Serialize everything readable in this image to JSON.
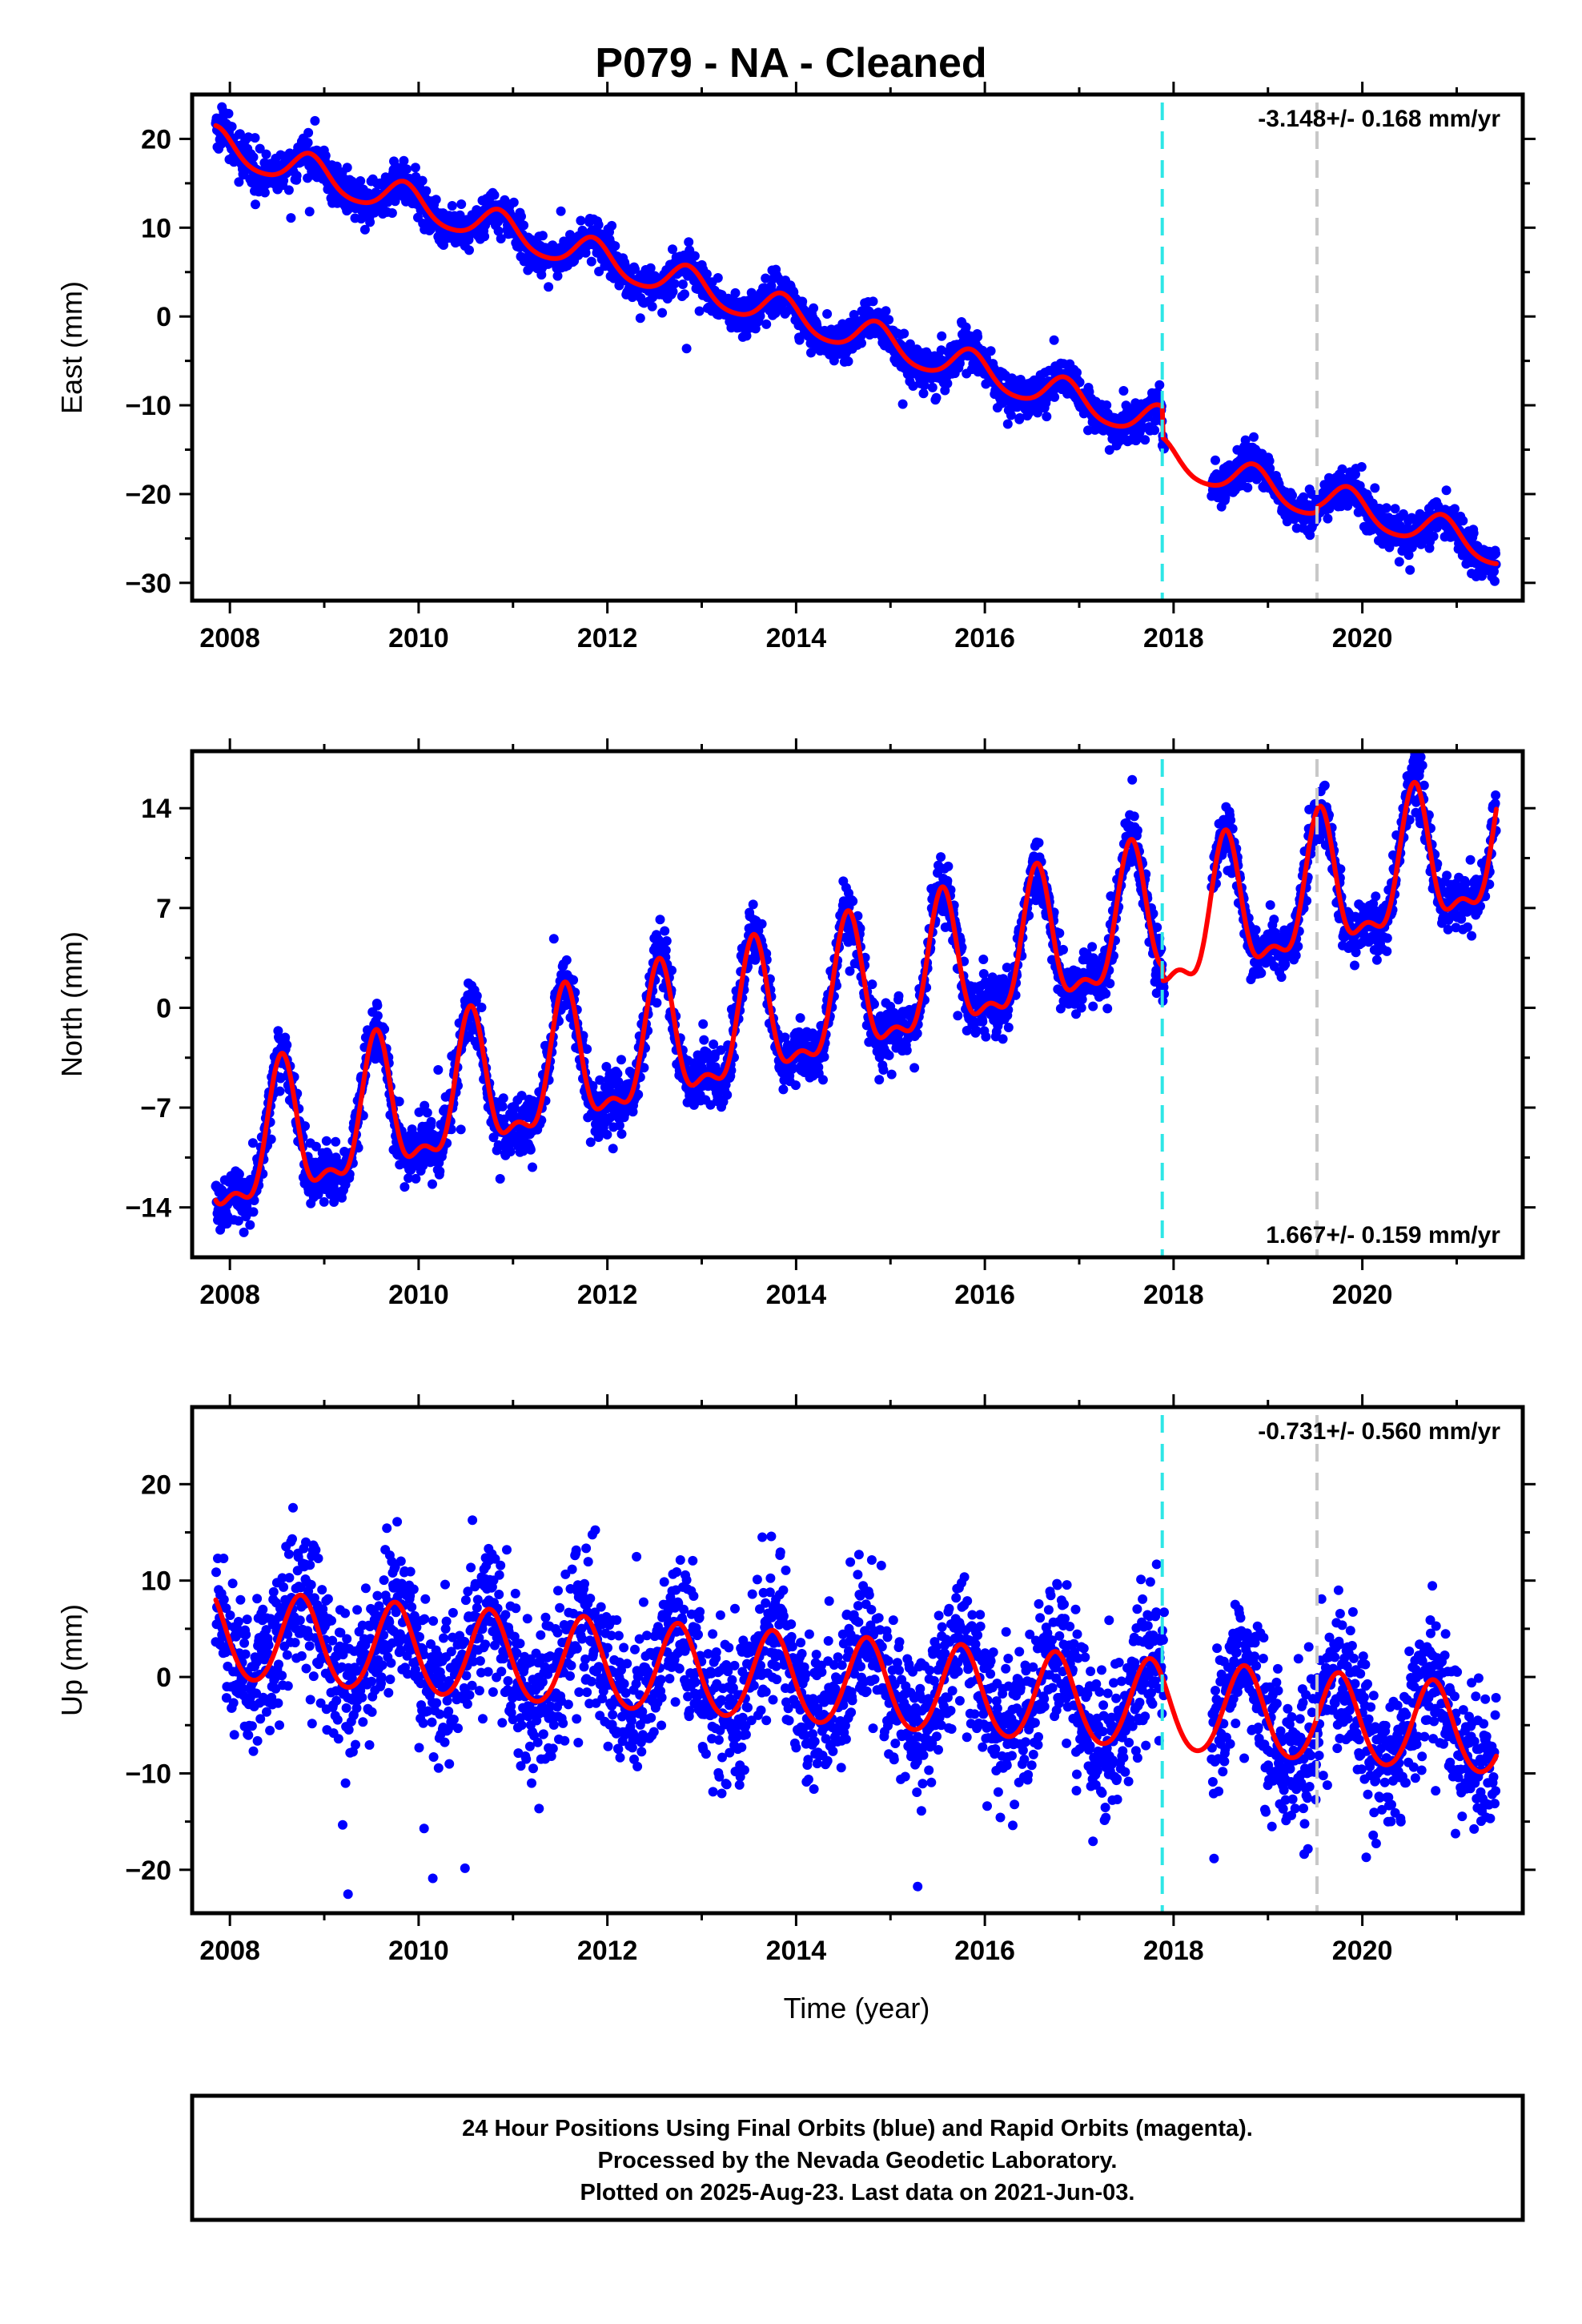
{
  "title": "P079  - NA - Cleaned",
  "colors": {
    "data": "#0000ff",
    "model": "#ff0000",
    "offset_primary": "#2ee6e6",
    "offset_secondary": "#c8c8c8",
    "frame": "#000000"
  },
  "chart_data": [
    {
      "type": "scatter",
      "component": "East",
      "ylabel": "East (mm)",
      "xlabel": "",
      "xlim": [
        2007.6,
        2021.7
      ],
      "ylim": [
        -32,
        25
      ],
      "xticks": [
        2008,
        2010,
        2012,
        2014,
        2016,
        2018,
        2020
      ],
      "yticks": [
        -30,
        -20,
        -10,
        0,
        10,
        20
      ],
      "rate_label": "-3.148+/- 0.168 mm/yr",
      "rate_label_position": "top-right",
      "velocity_mm_per_yr": -3.148,
      "offset_lines": [
        {
          "x": 2017.88,
          "color": "#2ee6e6"
        },
        {
          "x": 2019.52,
          "color": "#c8c8c8"
        }
      ],
      "model": {
        "start": 2007.85,
        "end": 2021.42,
        "value_at_start": 21.5,
        "annual_amplitude": 1.9,
        "annual_phase_peak": 0.85,
        "semiannual_amplitude": 0.3,
        "steps": [
          {
            "x": 2017.88,
            "delta": -3.5
          },
          {
            "x": 2019.52,
            "delta": 0.6
          }
        ]
      },
      "scatter_noise_mm": 1.1,
      "data_gap": [
        2017.9,
        2018.4
      ]
    },
    {
      "type": "scatter",
      "component": "North",
      "ylabel": "North (mm)",
      "xlabel": "",
      "xlim": [
        2007.6,
        2021.7
      ],
      "ylim": [
        -17.5,
        18
      ],
      "xticks": [
        2008,
        2010,
        2012,
        2014,
        2016,
        2018,
        2020
      ],
      "yticks": [
        -14,
        -7,
        0,
        7,
        14
      ],
      "rate_label": "1.667+/- 0.159 mm/yr",
      "rate_label_position": "bottom-right",
      "velocity_mm_per_yr": 1.667,
      "offset_lines": [
        {
          "x": 2017.88,
          "color": "#2ee6e6"
        },
        {
          "x": 2019.52,
          "color": "#c8c8c8"
        }
      ],
      "model": {
        "start": 2007.85,
        "end": 2021.42,
        "value_at_start": -13.5,
        "annual_amplitude": 4.5,
        "annual_phase_peak": 0.55,
        "semiannual_amplitude": 1.8,
        "steps": [
          {
            "x": 2017.88,
            "delta": -1.0
          },
          {
            "x": 2019.52,
            "delta": 0.0
          }
        ]
      },
      "scatter_noise_mm": 1.0,
      "data_gap": [
        2017.9,
        2018.4
      ]
    },
    {
      "type": "scatter",
      "component": "Up",
      "ylabel": "Up (mm)",
      "xlabel": "Time (year)",
      "xlim": [
        2007.6,
        2021.7
      ],
      "ylim": [
        -24.5,
        28
      ],
      "xticks": [
        2008,
        2010,
        2012,
        2014,
        2016,
        2018,
        2020
      ],
      "yticks": [
        -20,
        -10,
        0,
        10,
        20
      ],
      "rate_label": "-0.731+/- 0.560 mm/yr",
      "rate_label_position": "top-right",
      "velocity_mm_per_yr": -0.731,
      "offset_lines": [
        {
          "x": 2017.88,
          "color": "#2ee6e6"
        },
        {
          "x": 2019.52,
          "color": "#c8c8c8"
        }
      ],
      "model": {
        "start": 2007.85,
        "end": 2021.42,
        "value_at_start": 8.0,
        "annual_amplitude": 4.6,
        "annual_phase_peak": 0.75,
        "semiannual_amplitude": 0.4,
        "steps": [
          {
            "x": 2017.88,
            "delta": 0.0
          },
          {
            "x": 2019.52,
            "delta": 0.0
          }
        ]
      },
      "scatter_noise_mm": 3.8,
      "data_gap": [
        2017.9,
        2018.4
      ]
    }
  ],
  "footer": {
    "lines": [
      "24 Hour Positions Using Final Orbits (blue) and Rapid Orbits (magenta).",
      "Processed by the Nevada Geodetic Laboratory.",
      "Plotted on 2025-Aug-23. Last data on 2021-Jun-03."
    ]
  }
}
